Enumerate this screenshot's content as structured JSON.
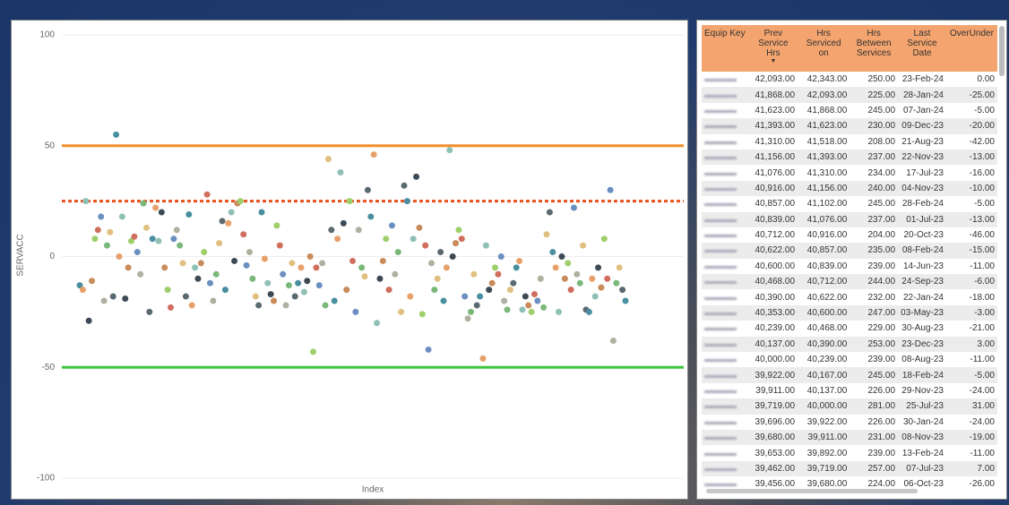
{
  "chart_data": {
    "type": "scatter",
    "y_label": "SERVACC",
    "x_label": "Index",
    "ylim": [
      -100,
      100
    ],
    "yticks": [
      -100,
      -50,
      0,
      50,
      100
    ],
    "grid": true,
    "palette": [
      "#4a8f9f",
      "#e8a06a",
      "#8fc0b5",
      "#3d4a55",
      "#c98b5a",
      "#9ecf6a",
      "#d06f5e",
      "#6b8fc0",
      "#b0b0a0",
      "#7ab87a",
      "#e0c080",
      "#5a6a70"
    ],
    "reference_lines": [
      {
        "value": 50,
        "color": "#f28e2b",
        "style": "solid"
      },
      {
        "value": 25,
        "color": "#e8501e",
        "style": "dotted"
      },
      {
        "value": -50,
        "color": "#3cc63c",
        "style": "solid"
      }
    ],
    "values": [
      -13,
      -15,
      25,
      -29,
      -11,
      8,
      12,
      18,
      -20,
      5,
      11,
      -18,
      55,
      0,
      18,
      -19,
      -5,
      7,
      9,
      2,
      -8,
      24,
      13,
      -25,
      8,
      22,
      7,
      20,
      -5,
      -15,
      -23,
      8,
      12,
      5,
      -3,
      -18,
      19,
      -22,
      -5,
      -10,
      -3,
      2,
      28,
      -12,
      -20,
      -8,
      6,
      16,
      -15,
      15,
      20,
      -2,
      24,
      25,
      10,
      -4,
      2,
      -10,
      -18,
      -22,
      20,
      -1,
      -12,
      -17,
      -20,
      14,
      5,
      -8,
      -22,
      -13,
      -3,
      -18,
      -12,
      -5,
      -16,
      -11,
      0,
      -43,
      -5,
      -13,
      -3,
      -22,
      44,
      12,
      -20,
      8,
      38,
      15,
      -15,
      25,
      -2,
      -25,
      12,
      -5,
      -9,
      30,
      18,
      46,
      -30,
      -10,
      -2,
      8,
      -15,
      14,
      -8,
      2,
      -25,
      32,
      25,
      -18,
      8,
      36,
      13,
      -26,
      5,
      -42,
      -3,
      -15,
      -10,
      2,
      -20,
      -5,
      48,
      0,
      6,
      12,
      8,
      -18,
      -28,
      -25,
      -8,
      -22,
      -18,
      -46,
      5,
      -15,
      -12,
      -5,
      -8,
      0,
      -20,
      -24,
      -15,
      -12,
      -5,
      -2,
      -24,
      -18,
      -22,
      -25,
      -17,
      -20,
      -10,
      -23,
      10,
      20,
      2,
      -5,
      -25,
      0,
      -10,
      -3,
      -15,
      22,
      -8,
      -12,
      5,
      -24,
      -25,
      -10,
      -18,
      -5,
      -14,
      8,
      -10,
      30,
      -38,
      -12,
      -5,
      -15,
      -20
    ]
  },
  "table": {
    "headers": [
      "Equip Key",
      "Prev Service Hrs",
      "Hrs Serviced on",
      "Hrs Between Services",
      "Last Service Date",
      "OverUnder"
    ],
    "rows": [
      [
        "42,093.00",
        "42,343.00",
        "250.00",
        "23-Feb-24",
        "0.00"
      ],
      [
        "41,868.00",
        "42,093.00",
        "225.00",
        "28-Jan-24",
        "-25.00"
      ],
      [
        "41,623.00",
        "41,868.00",
        "245.00",
        "07-Jan-24",
        "-5.00"
      ],
      [
        "41,393.00",
        "41,623.00",
        "230.00",
        "09-Dec-23",
        "-20.00"
      ],
      [
        "41,310.00",
        "41,518.00",
        "208.00",
        "21-Aug-23",
        "-42.00"
      ],
      [
        "41,156.00",
        "41,393.00",
        "237.00",
        "22-Nov-23",
        "-13.00"
      ],
      [
        "41,076.00",
        "41,310.00",
        "234.00",
        "17-Jul-23",
        "-16.00"
      ],
      [
        "40,916.00",
        "41,156.00",
        "240.00",
        "04-Nov-23",
        "-10.00"
      ],
      [
        "40,857.00",
        "41,102.00",
        "245.00",
        "28-Feb-24",
        "-5.00"
      ],
      [
        "40,839.00",
        "41,076.00",
        "237.00",
        "01-Jul-23",
        "-13.00"
      ],
      [
        "40,712.00",
        "40,916.00",
        "204.00",
        "20-Oct-23",
        "-46.00"
      ],
      [
        "40,622.00",
        "40,857.00",
        "235.00",
        "08-Feb-24",
        "-15.00"
      ],
      [
        "40,600.00",
        "40,839.00",
        "239.00",
        "14-Jun-23",
        "-11.00"
      ],
      [
        "40,468.00",
        "40,712.00",
        "244.00",
        "24-Sep-23",
        "-6.00"
      ],
      [
        "40,390.00",
        "40,622.00",
        "232.00",
        "22-Jan-24",
        "-18.00"
      ],
      [
        "40,353.00",
        "40,600.00",
        "247.00",
        "03-May-23",
        "-3.00"
      ],
      [
        "40,239.00",
        "40,468.00",
        "229.00",
        "30-Aug-23",
        "-21.00"
      ],
      [
        "40,137.00",
        "40,390.00",
        "253.00",
        "23-Dec-23",
        "3.00"
      ],
      [
        "40,000.00",
        "40,239.00",
        "239.00",
        "08-Aug-23",
        "-11.00"
      ],
      [
        "39,922.00",
        "40,167.00",
        "245.00",
        "18-Feb-24",
        "-5.00"
      ],
      [
        "39,911.00",
        "40,137.00",
        "226.00",
        "29-Nov-23",
        "-24.00"
      ],
      [
        "39,719.00",
        "40,000.00",
        "281.00",
        "25-Jul-23",
        "31.00"
      ],
      [
        "39,696.00",
        "39,922.00",
        "226.00",
        "30-Jan-24",
        "-24.00"
      ],
      [
        "39,680.00",
        "39,911.00",
        "231.00",
        "08-Nov-23",
        "-19.00"
      ],
      [
        "39,653.00",
        "39,892.00",
        "239.00",
        "13-Feb-24",
        "-11.00"
      ],
      [
        "39,462.00",
        "39,719.00",
        "257.00",
        "07-Jul-23",
        "7.00"
      ],
      [
        "39,456.00",
        "39,680.00",
        "224.00",
        "06-Oct-23",
        "-26.00"
      ]
    ]
  }
}
